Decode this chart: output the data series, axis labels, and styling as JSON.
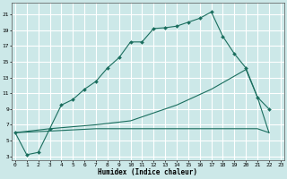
{
  "xlabel": "Humidex (Indice chaleur)",
  "bg_color": "#cce8e8",
  "grid_color": "#ffffff",
  "line_color": "#1a6e5e",
  "x_ticks": [
    0,
    1,
    2,
    3,
    4,
    5,
    6,
    7,
    8,
    9,
    10,
    11,
    12,
    13,
    14,
    15,
    16,
    17,
    18,
    19,
    20,
    21,
    22,
    23
  ],
  "y_ticks": [
    3,
    5,
    7,
    9,
    11,
    13,
    15,
    17,
    19,
    21
  ],
  "xlim": [
    -0.3,
    23.3
  ],
  "ylim": [
    2.5,
    22.5
  ],
  "line1_x": [
    0,
    1,
    2,
    3,
    4,
    5,
    6,
    7,
    8,
    9,
    10,
    11,
    12,
    13,
    14,
    15,
    16,
    17,
    18,
    19,
    20,
    21,
    22
  ],
  "line1_y": [
    6.0,
    3.2,
    3.5,
    6.5,
    9.5,
    10.2,
    11.5,
    12.5,
    14.2,
    15.5,
    17.5,
    17.5,
    19.2,
    19.3,
    19.5,
    20.0,
    20.5,
    21.3,
    18.2,
    16.0,
    14.2,
    10.5,
    9.0
  ],
  "line2_x": [
    0,
    3,
    7,
    10,
    14,
    17,
    20,
    21,
    22
  ],
  "line2_y": [
    6.0,
    6.5,
    7.0,
    7.5,
    9.5,
    11.5,
    14.0,
    10.5,
    6.0
  ],
  "line3_x": [
    0,
    3,
    7,
    10,
    15,
    17,
    20,
    21,
    22
  ],
  "line3_y": [
    6.0,
    6.2,
    6.5,
    6.5,
    6.5,
    6.5,
    6.5,
    6.5,
    6.0
  ]
}
